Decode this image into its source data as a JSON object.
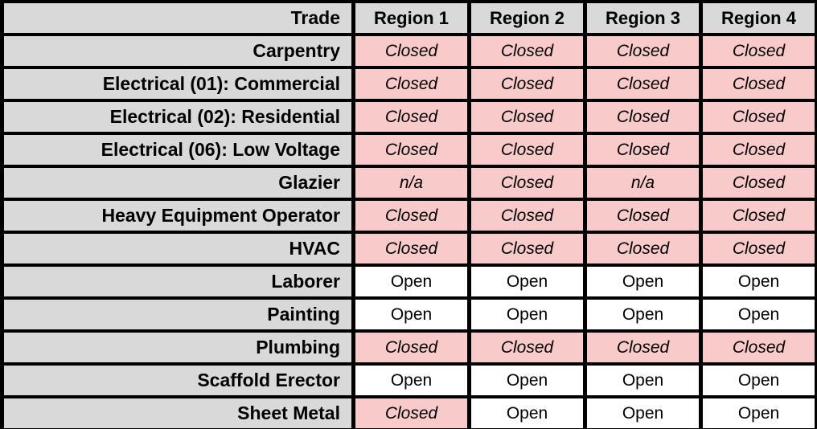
{
  "colors": {
    "header_fill": "#d9d9d9",
    "trade_column_fill": "#d9d9d9",
    "closed_fill": "#f8caca",
    "open_fill": "#ffffff",
    "border": "#000000",
    "text": "#000000"
  },
  "table": {
    "headers": [
      "Trade",
      "Region 1",
      "Region 2",
      "Region 3",
      "Region 4"
    ],
    "rows": [
      {
        "trade": "Carpentry",
        "cells": [
          "Closed",
          "Closed",
          "Closed",
          "Closed"
        ]
      },
      {
        "trade": "Electrical (01): Commercial",
        "cells": [
          "Closed",
          "Closed",
          "Closed",
          "Closed"
        ]
      },
      {
        "trade": "Electrical (02): Residential",
        "cells": [
          "Closed",
          "Closed",
          "Closed",
          "Closed"
        ]
      },
      {
        "trade": "Electrical (06): Low Voltage",
        "cells": [
          "Closed",
          "Closed",
          "Closed",
          "Closed"
        ]
      },
      {
        "trade": "Glazier",
        "cells": [
          "n/a",
          "Closed",
          "n/a",
          "Closed"
        ]
      },
      {
        "trade": "Heavy Equipment Operator",
        "cells": [
          "Closed",
          "Closed",
          "Closed",
          "Closed"
        ]
      },
      {
        "trade": "HVAC",
        "cells": [
          "Closed",
          "Closed",
          "Closed",
          "Closed"
        ]
      },
      {
        "trade": "Laborer",
        "cells": [
          "Open",
          "Open",
          "Open",
          "Open"
        ]
      },
      {
        "trade": "Painting",
        "cells": [
          "Open",
          "Open",
          "Open",
          "Open"
        ]
      },
      {
        "trade": "Plumbing",
        "cells": [
          "Closed",
          "Closed",
          "Closed",
          "Closed"
        ]
      },
      {
        "trade": "Scaffold Erector",
        "cells": [
          "Open",
          "Open",
          "Open",
          "Open"
        ]
      },
      {
        "trade": "Sheet Metal",
        "cells": [
          "Closed",
          "Open",
          "Open",
          "Open"
        ]
      }
    ]
  },
  "chart_data": {
    "type": "table",
    "title": "",
    "columns": [
      "Trade",
      "Region 1",
      "Region 2",
      "Region 3",
      "Region 4"
    ],
    "rows": [
      [
        "Carpentry",
        "Closed",
        "Closed",
        "Closed",
        "Closed"
      ],
      [
        "Electrical (01): Commercial",
        "Closed",
        "Closed",
        "Closed",
        "Closed"
      ],
      [
        "Electrical (02): Residential",
        "Closed",
        "Closed",
        "Closed",
        "Closed"
      ],
      [
        "Electrical (06): Low Voltage",
        "Closed",
        "Closed",
        "Closed",
        "Closed"
      ],
      [
        "Glazier",
        "n/a",
        "Closed",
        "n/a",
        "Closed"
      ],
      [
        "Heavy Equipment Operator",
        "Closed",
        "Closed",
        "Closed",
        "Closed"
      ],
      [
        "HVAC",
        "Closed",
        "Closed",
        "Closed",
        "Closed"
      ],
      [
        "Laborer",
        "Open",
        "Open",
        "Open",
        "Open"
      ],
      [
        "Painting",
        "Open",
        "Open",
        "Open",
        "Open"
      ],
      [
        "Plumbing",
        "Closed",
        "Closed",
        "Closed",
        "Closed"
      ],
      [
        "Scaffold Erector",
        "Open",
        "Open",
        "Open",
        "Open"
      ],
      [
        "Sheet Metal",
        "Closed",
        "Open",
        "Open",
        "Open"
      ]
    ],
    "legend": {
      "Closed": "pink background, italic",
      "n/a": "pink background, italic",
      "Open": "white background, regular"
    }
  }
}
